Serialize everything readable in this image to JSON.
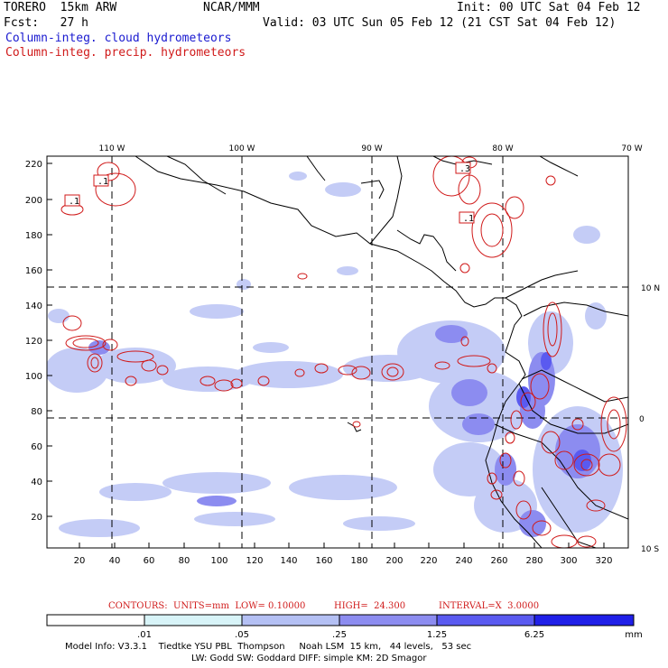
{
  "header": {
    "model": "TORERO  15km ARW",
    "center": "NCAR/MMM",
    "init": "Init: 00 UTC Sat 04 Feb 12",
    "fcst": "Fcst:   27 h",
    "valid": "Valid: 03 UTC Sun 05 Feb 12 (21 CST Sat 04 Feb 12)",
    "field1": "Column-integ. cloud hydrometeors",
    "field2": "Column-integ. precip. hydrometeors"
  },
  "axes": {
    "top_lon": [
      "110 W",
      "100 W",
      "90 W",
      "80 W",
      "70 W"
    ],
    "right_lat": [
      "10 N",
      "0",
      "10 S"
    ],
    "y_ticks": [
      "220",
      "200",
      "180",
      "160",
      "140",
      "120",
      "100",
      "80",
      "60",
      "40",
      "20"
    ],
    "x_ticks": [
      "20",
      "40",
      "60",
      "80",
      "100",
      "120",
      "140",
      "160",
      "180",
      "200",
      "220",
      "240",
      "260",
      "280",
      "300",
      "320"
    ]
  },
  "contour_labels": [
    ".1",
    ".1",
    ".3",
    ".1"
  ],
  "contour_info": {
    "units": "CONTOURS:  UNITS=mm  LOW= 0.10000",
    "high": "HIGH=  24.300",
    "interval": "INTERVAL=X  3.0000"
  },
  "colorbar": {
    "labels": [
      ".01",
      ".05",
      ".25",
      "1.25",
      "6.25"
    ],
    "unit": "mm",
    "colors": [
      "#ffffff",
      "#d8f4f8",
      "#b4c0f4",
      "#8c8cf0",
      "#5a5af0",
      "#2c2cf0",
      "#1010e8"
    ]
  },
  "model_info": {
    "line1": "Model Info: V3.3.1    Tiedtke YSU PBL  Thompson     Noah LSM  15 km,   44 levels,   53 sec",
    "line2": "LW: Godd SW: Goddard DIFF: simple KM: 2D Smagor"
  }
}
